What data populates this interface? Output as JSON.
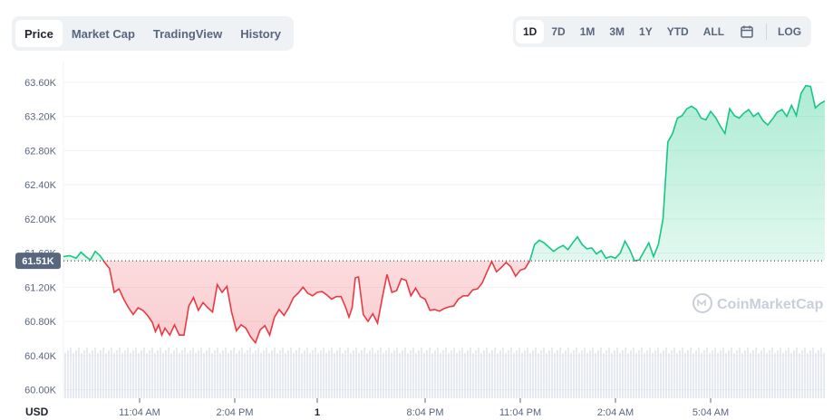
{
  "tabs": [
    {
      "label": "Price",
      "active": true
    },
    {
      "label": "Market Cap",
      "active": false
    },
    {
      "label": "TradingView",
      "active": false
    },
    {
      "label": "History",
      "active": false
    }
  ],
  "ranges": [
    {
      "label": "1D",
      "active": true
    },
    {
      "label": "7D",
      "active": false
    },
    {
      "label": "1M",
      "active": false
    },
    {
      "label": "3M",
      "active": false
    },
    {
      "label": "1Y",
      "active": false
    },
    {
      "label": "YTD",
      "active": false
    },
    {
      "label": "ALL",
      "active": false
    }
  ],
  "calendar_icon": "calendar-icon",
  "log_label": "LOG",
  "watermark": "CoinMarketCap",
  "colors": {
    "up": "#16c784",
    "down": "#ea3943",
    "grid": "#eff2f5",
    "axis": "#58667e",
    "volume": "#cfd6e4"
  },
  "chart_data": {
    "type": "area",
    "currency_label": "USD",
    "baseline": 61510,
    "baseline_label": "61.51K",
    "ylim": [
      59900,
      63800
    ],
    "y_ticks": [
      60000,
      60400,
      60800,
      61200,
      61600,
      62000,
      62400,
      62800,
      63200,
      63600
    ],
    "y_tick_labels": [
      "60.00K",
      "60.40K",
      "60.80K",
      "61.20K",
      "61.60K",
      "62.00K",
      "62.40K",
      "62.80K",
      "63.20K",
      "63.60K"
    ],
    "xlim": [
      0,
      24
    ],
    "x_ticks": [
      {
        "x": 2.4,
        "label": "11:04 AM"
      },
      {
        "x": 5.4,
        "label": "2:04 PM"
      },
      {
        "x": 8.0,
        "label": "1"
      },
      {
        "x": 11.4,
        "label": "8:04 PM"
      },
      {
        "x": 14.4,
        "label": "11:04 PM"
      },
      {
        "x": 17.4,
        "label": "2:04 AM"
      },
      {
        "x": 20.4,
        "label": "5:04 AM"
      }
    ],
    "series": [
      {
        "values": [
          [
            0.0,
            61560
          ],
          [
            0.2,
            61570
          ],
          [
            0.4,
            61540
          ],
          [
            0.55,
            61610
          ],
          [
            0.7,
            61560
          ],
          [
            0.85,
            61520
          ],
          [
            1.0,
            61620
          ],
          [
            1.15,
            61570
          ],
          [
            1.3,
            61490
          ],
          [
            1.45,
            61420
          ],
          [
            1.6,
            61140
          ],
          [
            1.75,
            61180
          ],
          [
            1.9,
            61060
          ],
          [
            2.05,
            60960
          ],
          [
            2.2,
            60880
          ],
          [
            2.35,
            60960
          ],
          [
            2.5,
            60930
          ],
          [
            2.65,
            60870
          ],
          [
            2.8,
            60790
          ],
          [
            2.9,
            60680
          ],
          [
            3.0,
            60760
          ],
          [
            3.1,
            60640
          ],
          [
            3.2,
            60720
          ],
          [
            3.35,
            60640
          ],
          [
            3.5,
            60760
          ],
          [
            3.65,
            60640
          ],
          [
            3.8,
            60640
          ],
          [
            3.95,
            60980
          ],
          [
            4.1,
            61080
          ],
          [
            4.25,
            60930
          ],
          [
            4.4,
            61020
          ],
          [
            4.55,
            60960
          ],
          [
            4.7,
            60910
          ],
          [
            4.85,
            61230
          ],
          [
            5.0,
            61140
          ],
          [
            5.15,
            61210
          ],
          [
            5.3,
            60910
          ],
          [
            5.45,
            60690
          ],
          [
            5.6,
            60760
          ],
          [
            5.75,
            60720
          ],
          [
            5.9,
            60620
          ],
          [
            6.05,
            60550
          ],
          [
            6.2,
            60700
          ],
          [
            6.35,
            60750
          ],
          [
            6.5,
            60640
          ],
          [
            6.65,
            60850
          ],
          [
            6.8,
            60940
          ],
          [
            6.95,
            60870
          ],
          [
            7.1,
            60960
          ],
          [
            7.25,
            61080
          ],
          [
            7.4,
            61130
          ],
          [
            7.55,
            61200
          ],
          [
            7.7,
            61130
          ],
          [
            7.85,
            61100
          ],
          [
            8.0,
            61140
          ],
          [
            8.15,
            61150
          ],
          [
            8.3,
            61110
          ],
          [
            8.45,
            61060
          ],
          [
            8.6,
            61090
          ],
          [
            8.75,
            61090
          ],
          [
            8.9,
            60960
          ],
          [
            9.0,
            60850
          ],
          [
            9.1,
            60960
          ],
          [
            9.2,
            61310
          ],
          [
            9.3,
            61320
          ],
          [
            9.45,
            60880
          ],
          [
            9.6,
            60800
          ],
          [
            9.75,
            60890
          ],
          [
            9.9,
            60780
          ],
          [
            10.05,
            61080
          ],
          [
            10.2,
            61350
          ],
          [
            10.35,
            61140
          ],
          [
            10.5,
            61160
          ],
          [
            10.65,
            61300
          ],
          [
            10.8,
            61280
          ],
          [
            10.95,
            61100
          ],
          [
            11.1,
            61190
          ],
          [
            11.25,
            61090
          ],
          [
            11.4,
            61060
          ],
          [
            11.55,
            60930
          ],
          [
            11.7,
            60940
          ],
          [
            11.85,
            60920
          ],
          [
            12.0,
            60950
          ],
          [
            12.15,
            60970
          ],
          [
            12.3,
            60980
          ],
          [
            12.45,
            61060
          ],
          [
            12.6,
            61100
          ],
          [
            12.75,
            61100
          ],
          [
            12.9,
            61170
          ],
          [
            13.05,
            61180
          ],
          [
            13.2,
            61250
          ],
          [
            13.35,
            61380
          ],
          [
            13.5,
            61500
          ],
          [
            13.65,
            61380
          ],
          [
            13.8,
            61430
          ],
          [
            13.95,
            61490
          ],
          [
            14.1,
            61440
          ],
          [
            14.25,
            61330
          ],
          [
            14.4,
            61400
          ],
          [
            14.55,
            61420
          ],
          [
            14.7,
            61510
          ],
          [
            14.85,
            61700
          ],
          [
            15.0,
            61750
          ],
          [
            15.15,
            61720
          ],
          [
            15.3,
            61670
          ],
          [
            15.45,
            61620
          ],
          [
            15.6,
            61660
          ],
          [
            15.75,
            61690
          ],
          [
            15.9,
            61640
          ],
          [
            16.05,
            61720
          ],
          [
            16.2,
            61790
          ],
          [
            16.35,
            61700
          ],
          [
            16.5,
            61650
          ],
          [
            16.65,
            61660
          ],
          [
            16.8,
            61590
          ],
          [
            16.95,
            61630
          ],
          [
            17.1,
            61540
          ],
          [
            17.25,
            61560
          ],
          [
            17.4,
            61540
          ],
          [
            17.55,
            61600
          ],
          [
            17.7,
            61740
          ],
          [
            17.85,
            61640
          ],
          [
            18.0,
            61510
          ],
          [
            18.15,
            61520
          ],
          [
            18.3,
            61620
          ],
          [
            18.45,
            61720
          ],
          [
            18.6,
            61560
          ],
          [
            18.75,
            61700
          ],
          [
            18.9,
            62000
          ],
          [
            19.05,
            62900
          ],
          [
            19.2,
            63000
          ],
          [
            19.35,
            63180
          ],
          [
            19.5,
            63210
          ],
          [
            19.65,
            63290
          ],
          [
            19.8,
            63320
          ],
          [
            19.95,
            63280
          ],
          [
            20.1,
            63180
          ],
          [
            20.25,
            63160
          ],
          [
            20.4,
            63260
          ],
          [
            20.55,
            63190
          ],
          [
            20.7,
            63090
          ],
          [
            20.85,
            63000
          ],
          [
            21.0,
            63290
          ],
          [
            21.15,
            63210
          ],
          [
            21.3,
            63180
          ],
          [
            21.45,
            63240
          ],
          [
            21.6,
            63280
          ],
          [
            21.75,
            63200
          ],
          [
            21.9,
            63240
          ],
          [
            22.05,
            63150
          ],
          [
            22.2,
            63100
          ],
          [
            22.35,
            63170
          ],
          [
            22.5,
            63250
          ],
          [
            22.65,
            63280
          ],
          [
            22.8,
            63200
          ],
          [
            22.95,
            63330
          ],
          [
            23.1,
            63210
          ],
          [
            23.25,
            63470
          ],
          [
            23.4,
            63560
          ],
          [
            23.55,
            63550
          ],
          [
            23.7,
            63300
          ],
          [
            23.85,
            63350
          ],
          [
            24.0,
            63380
          ]
        ]
      }
    ]
  }
}
